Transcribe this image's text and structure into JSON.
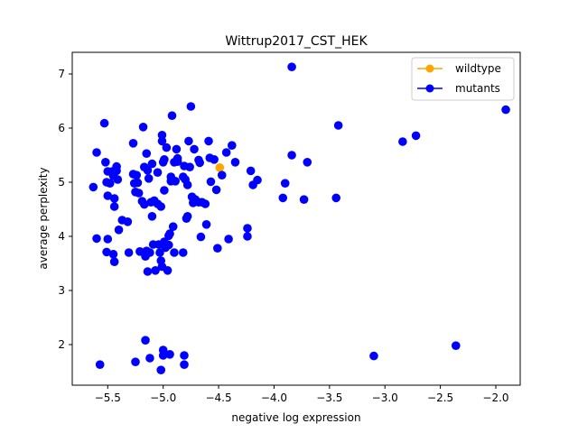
{
  "chart_data": {
    "type": "scatter",
    "title": "Wittrup2017_CST_HEK",
    "xlabel": "negative log expression",
    "ylabel": "average perplexity",
    "xlim": [
      -5.82,
      -1.78
    ],
    "ylim": [
      1.25,
      7.4
    ],
    "xticks": [
      -5.5,
      -5.0,
      -4.5,
      -4.0,
      -3.5,
      -3.0,
      -2.5,
      -2.0
    ],
    "xtick_labels": [
      "−5.5",
      "−5.0",
      "−4.5",
      "−4.0",
      "−3.5",
      "−3.0",
      "−2.5",
      "−2.0"
    ],
    "yticks": [
      2,
      3,
      4,
      5,
      6,
      7
    ],
    "ytick_labels": [
      "2",
      "3",
      "4",
      "5",
      "6",
      "7"
    ],
    "grid": false,
    "legend_position": "top-right",
    "series": [
      {
        "name": "wildtype",
        "color": "#ffa500",
        "points": [
          [
            -4.49,
            5.27
          ]
        ]
      },
      {
        "name": "mutants",
        "color": "#0000ff",
        "points": [
          [
            -5.63,
            4.91
          ],
          [
            -5.6,
            5.55
          ],
          [
            -5.6,
            3.96
          ],
          [
            -5.57,
            1.63
          ],
          [
            -5.53,
            6.09
          ],
          [
            -5.52,
            5.37
          ],
          [
            -5.51,
            5.0
          ],
          [
            -5.51,
            3.71
          ],
          [
            -5.5,
            5.2
          ],
          [
            -5.5,
            4.75
          ],
          [
            -5.5,
            3.95
          ],
          [
            -5.48,
            4.98
          ],
          [
            -5.46,
            5.2
          ],
          [
            -5.45,
            5.12
          ],
          [
            -5.45,
            3.67
          ],
          [
            -5.44,
            4.7
          ],
          [
            -5.44,
            4.55
          ],
          [
            -5.44,
            3.53
          ],
          [
            -5.42,
            5.29
          ],
          [
            -5.42,
            5.21
          ],
          [
            -5.41,
            5.05
          ],
          [
            -5.4,
            4.12
          ],
          [
            -5.37,
            4.3
          ],
          [
            -5.32,
            4.27
          ],
          [
            -5.31,
            3.7
          ],
          [
            -5.27,
            5.72
          ],
          [
            -5.27,
            5.15
          ],
          [
            -5.26,
            4.98
          ],
          [
            -5.25,
            4.82
          ],
          [
            -5.25,
            1.68
          ],
          [
            -5.24,
            5.13
          ],
          [
            -5.23,
            4.99
          ],
          [
            -5.22,
            4.8
          ],
          [
            -5.21,
            3.72
          ],
          [
            -5.19,
            4.65
          ],
          [
            -5.18,
            6.02
          ],
          [
            -5.17,
            5.28
          ],
          [
            -5.17,
            4.59
          ],
          [
            -5.16,
            3.63
          ],
          [
            -5.16,
            2.08
          ],
          [
            -5.15,
            5.53
          ],
          [
            -5.15,
            3.73
          ],
          [
            -5.14,
            5.22
          ],
          [
            -5.14,
            3.35
          ],
          [
            -5.13,
            5.07
          ],
          [
            -5.12,
            3.7
          ],
          [
            -5.12,
            1.75
          ],
          [
            -5.11,
            4.63
          ],
          [
            -5.1,
            5.34
          ],
          [
            -5.1,
            4.37
          ],
          [
            -5.09,
            3.85
          ],
          [
            -5.08,
            4.66
          ],
          [
            -5.07,
            3.37
          ],
          [
            -5.05,
            5.18
          ],
          [
            -5.05,
            4.6
          ],
          [
            -5.04,
            3.85
          ],
          [
            -5.03,
            3.7
          ],
          [
            -5.02,
            4.55
          ],
          [
            -5.02,
            3.55
          ],
          [
            -5.02,
            1.53
          ],
          [
            -5.01,
            5.87
          ],
          [
            -5.01,
            5.76
          ],
          [
            -5.01,
            3.44
          ],
          [
            -5.0,
            5.37
          ],
          [
            -5.0,
            1.9
          ],
          [
            -5.0,
            1.8
          ],
          [
            -4.99,
            5.42
          ],
          [
            -4.99,
            4.85
          ],
          [
            -4.99,
            3.9
          ],
          [
            -4.98,
            3.79
          ],
          [
            -4.97,
            5.64
          ],
          [
            -4.96,
            3.37
          ],
          [
            -4.95,
            4.01
          ],
          [
            -4.95,
            3.84
          ],
          [
            -4.94,
            4.05
          ],
          [
            -4.94,
            1.82
          ],
          [
            -4.93,
            5.1
          ],
          [
            -4.93,
            5.02
          ],
          [
            -4.92,
            6.23
          ],
          [
            -4.91,
            4.18
          ],
          [
            -4.9,
            5.37
          ],
          [
            -4.9,
            3.7
          ],
          [
            -4.89,
            5.02
          ],
          [
            -4.88,
            5.61
          ],
          [
            -4.87,
            5.44
          ],
          [
            -4.87,
            5.38
          ],
          [
            -4.82,
            5.1
          ],
          [
            -4.82,
            3.7
          ],
          [
            -4.81,
            5.3
          ],
          [
            -4.81,
            1.8
          ],
          [
            -4.81,
            1.63
          ],
          [
            -4.8,
            5.05
          ],
          [
            -4.79,
            4.33
          ],
          [
            -4.78,
            4.95
          ],
          [
            -4.78,
            4.37
          ],
          [
            -4.77,
            5.76
          ],
          [
            -4.76,
            5.28
          ],
          [
            -4.75,
            6.4
          ],
          [
            -4.74,
            4.73
          ],
          [
            -4.73,
            4.62
          ],
          [
            -4.72,
            5.61
          ],
          [
            -4.71,
            4.68
          ],
          [
            -4.68,
            4.63
          ],
          [
            -4.68,
            5.41
          ],
          [
            -4.67,
            5.36
          ],
          [
            -4.66,
            3.99
          ],
          [
            -4.65,
            4.63
          ],
          [
            -4.62,
            4.6
          ],
          [
            -4.61,
            4.22
          ],
          [
            -4.59,
            5.76
          ],
          [
            -4.58,
            5.45
          ],
          [
            -4.57,
            5.01
          ],
          [
            -4.54,
            5.42
          ],
          [
            -4.52,
            4.86
          ],
          [
            -4.51,
            3.78
          ],
          [
            -4.47,
            5.13
          ],
          [
            -4.43,
            5.55
          ],
          [
            -4.41,
            3.95
          ],
          [
            -4.38,
            5.68
          ],
          [
            -4.35,
            5.37
          ],
          [
            -4.24,
            4.15
          ],
          [
            -4.24,
            4.0
          ],
          [
            -4.21,
            5.21
          ],
          [
            -4.19,
            4.95
          ],
          [
            -4.15,
            5.04
          ],
          [
            -3.92,
            4.71
          ],
          [
            -3.9,
            4.98
          ],
          [
            -3.84,
            7.13
          ],
          [
            -3.84,
            5.5
          ],
          [
            -3.73,
            4.68
          ],
          [
            -3.7,
            5.37
          ],
          [
            -3.44,
            4.71
          ],
          [
            -3.42,
            6.05
          ],
          [
            -3.1,
            1.79
          ],
          [
            -2.84,
            5.75
          ],
          [
            -2.72,
            5.86
          ],
          [
            -2.36,
            1.98
          ],
          [
            -1.91,
            6.34
          ]
        ]
      }
    ]
  }
}
